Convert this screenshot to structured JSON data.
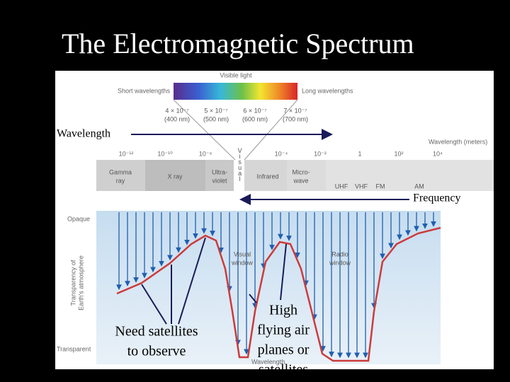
{
  "title": "The Electromagnetic Spectrum",
  "visible_light": {
    "label": "Visible light",
    "short": "Short wavelengths",
    "long": "Long wavelengths",
    "markers": [
      [
        "4 × 10⁻⁷",
        "(400 nm)"
      ],
      [
        "5 × 10⁻⁷",
        "(500 nm)"
      ],
      [
        "6 × 10⁻⁷",
        "(600 nm)"
      ],
      [
        "7 × 10⁻⁷",
        "(700 nm)"
      ]
    ]
  },
  "wavelength_arrow": "Wavelength",
  "frequency_arrow": "Frequency",
  "scale": {
    "label": "Wavelength (meters)",
    "ticks": [
      "10⁻¹²",
      "10⁻¹⁰",
      "10⁻⁸",
      "10⁻⁴",
      "10⁻²",
      "1",
      "10²",
      "10⁴"
    ]
  },
  "bands": [
    [
      "Gamma",
      "ray"
    ],
    [
      "X ray"
    ],
    [
      "Ultra-",
      "violet"
    ],
    [
      "Visual"
    ],
    [
      "Infrared"
    ],
    [
      "Micro-",
      "wave"
    ],
    [
      "UHF"
    ],
    [
      "VHF"
    ],
    [
      "FM"
    ],
    [
      "AM"
    ]
  ],
  "atmosphere": {
    "opaque": "Opaque",
    "transparent": "Transparent",
    "axis_label": [
      "Transparency of",
      "Earth's atmosphere"
    ],
    "visual_window": [
      "Visual",
      "window"
    ],
    "radio_window": [
      "Radio",
      "window"
    ],
    "bottom_label": "Wavelength"
  },
  "annotations": {
    "satellites": [
      "Need satellites",
      "to observe"
    ],
    "airplanes": [
      "High",
      "flying air",
      "planes or",
      "satellites"
    ]
  }
}
